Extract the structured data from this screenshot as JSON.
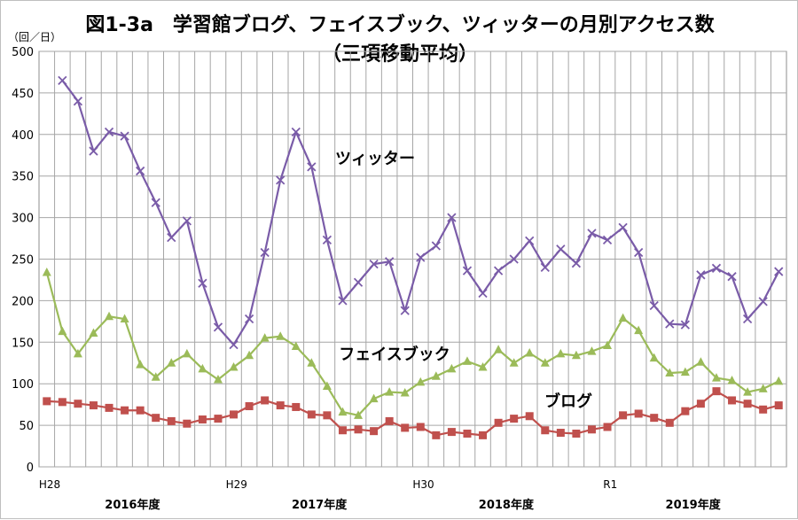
{
  "chart_data": {
    "type": "line",
    "title": "図1-3a　学習館ブログ、フェイスブック、ツィッターの月別アクセス数",
    "subtitle": "（三項移動平均）",
    "ylabel": "（回／日）",
    "ylim": [
      0,
      500
    ],
    "yticks": [
      0,
      50,
      100,
      150,
      200,
      250,
      300,
      350,
      400,
      450,
      500
    ],
    "grid": true,
    "era_labels": [
      {
        "label": "H28",
        "month_index": 0
      },
      {
        "label": "H29",
        "month_index": 12
      },
      {
        "label": "H30",
        "month_index": 24
      },
      {
        "label": "R1",
        "month_index": 36
      }
    ],
    "fiscal_year_labels": [
      {
        "label": "2016年度",
        "start_index": 0
      },
      {
        "label": "2017年度",
        "start_index": 12
      },
      {
        "label": "2018年度",
        "start_index": 24
      },
      {
        "label": "2019年度",
        "start_index": 36
      }
    ],
    "series": [
      {
        "name": "ツィッター",
        "color": "#7a5ca8",
        "marker": "x",
        "start_index": 1,
        "values": [
          465,
          440,
          380,
          403,
          398,
          356,
          318,
          276,
          296,
          221,
          168,
          147,
          178,
          258,
          345,
          403,
          361,
          273,
          200,
          222,
          244,
          247,
          188,
          252,
          266,
          300,
          236,
          209,
          236,
          250,
          272,
          240,
          262,
          245,
          281,
          273,
          288,
          258,
          194,
          172,
          171,
          231,
          239,
          229,
          178,
          199,
          235
        ]
      },
      {
        "name": "フェイスブック",
        "color": "#9bbb59",
        "marker": "triangle",
        "start_index": 0,
        "values": [
          234,
          163,
          136,
          161,
          181,
          178,
          123,
          108,
          125,
          136,
          118,
          105,
          120,
          134,
          155,
          157,
          145,
          125,
          97,
          66,
          62,
          82,
          90,
          89,
          102,
          109,
          118,
          127,
          120,
          141,
          125,
          137,
          125,
          136,
          134,
          139,
          146,
          179,
          164,
          131,
          113,
          114,
          126,
          107,
          104,
          90,
          94,
          103
        ]
      },
      {
        "name": "ブログ",
        "color": "#c0504d",
        "marker": "square",
        "start_index": 0,
        "values": [
          79,
          78,
          76,
          74,
          71,
          68,
          68,
          59,
          55,
          52,
          57,
          58,
          63,
          73,
          80,
          74,
          72,
          63,
          62,
          44,
          45,
          43,
          55,
          47,
          48,
          38,
          42,
          40,
          38,
          53,
          58,
          61,
          44,
          41,
          40,
          45,
          48,
          62,
          64,
          59,
          53,
          67,
          76,
          91,
          80,
          76,
          69,
          74
        ]
      }
    ],
    "annotations": [
      {
        "text": "ツィッター",
        "series": "ツィッター"
      },
      {
        "text": "フェイスブック",
        "series": "フェイスブック"
      },
      {
        "text": "ブログ",
        "series": "ブログ"
      }
    ]
  }
}
